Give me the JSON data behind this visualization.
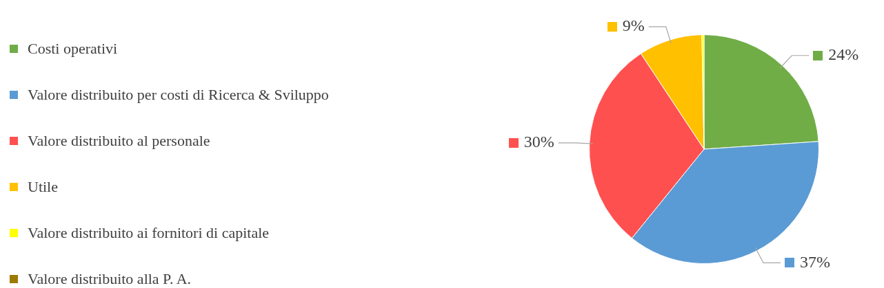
{
  "chart_data": {
    "type": "pie",
    "categories": [
      "Costi operativi",
      "Valore distribuito per costi di Ricerca & Sviluppo",
      "Valore distribuito al personale",
      "Utile",
      "Valore distribuito ai fornitori di capitale",
      "Valore distribuito alla P. A."
    ],
    "values": [
      24,
      37,
      30,
      9,
      0.3,
      0
    ],
    "colors": [
      "#70ad47",
      "#5b9bd5",
      "#ff5050",
      "#ffc000",
      "#ffff00",
      "#9c7a00"
    ],
    "value_labels": [
      "24%",
      "37%",
      "30%",
      "9%",
      null,
      null
    ],
    "legend": "left"
  }
}
